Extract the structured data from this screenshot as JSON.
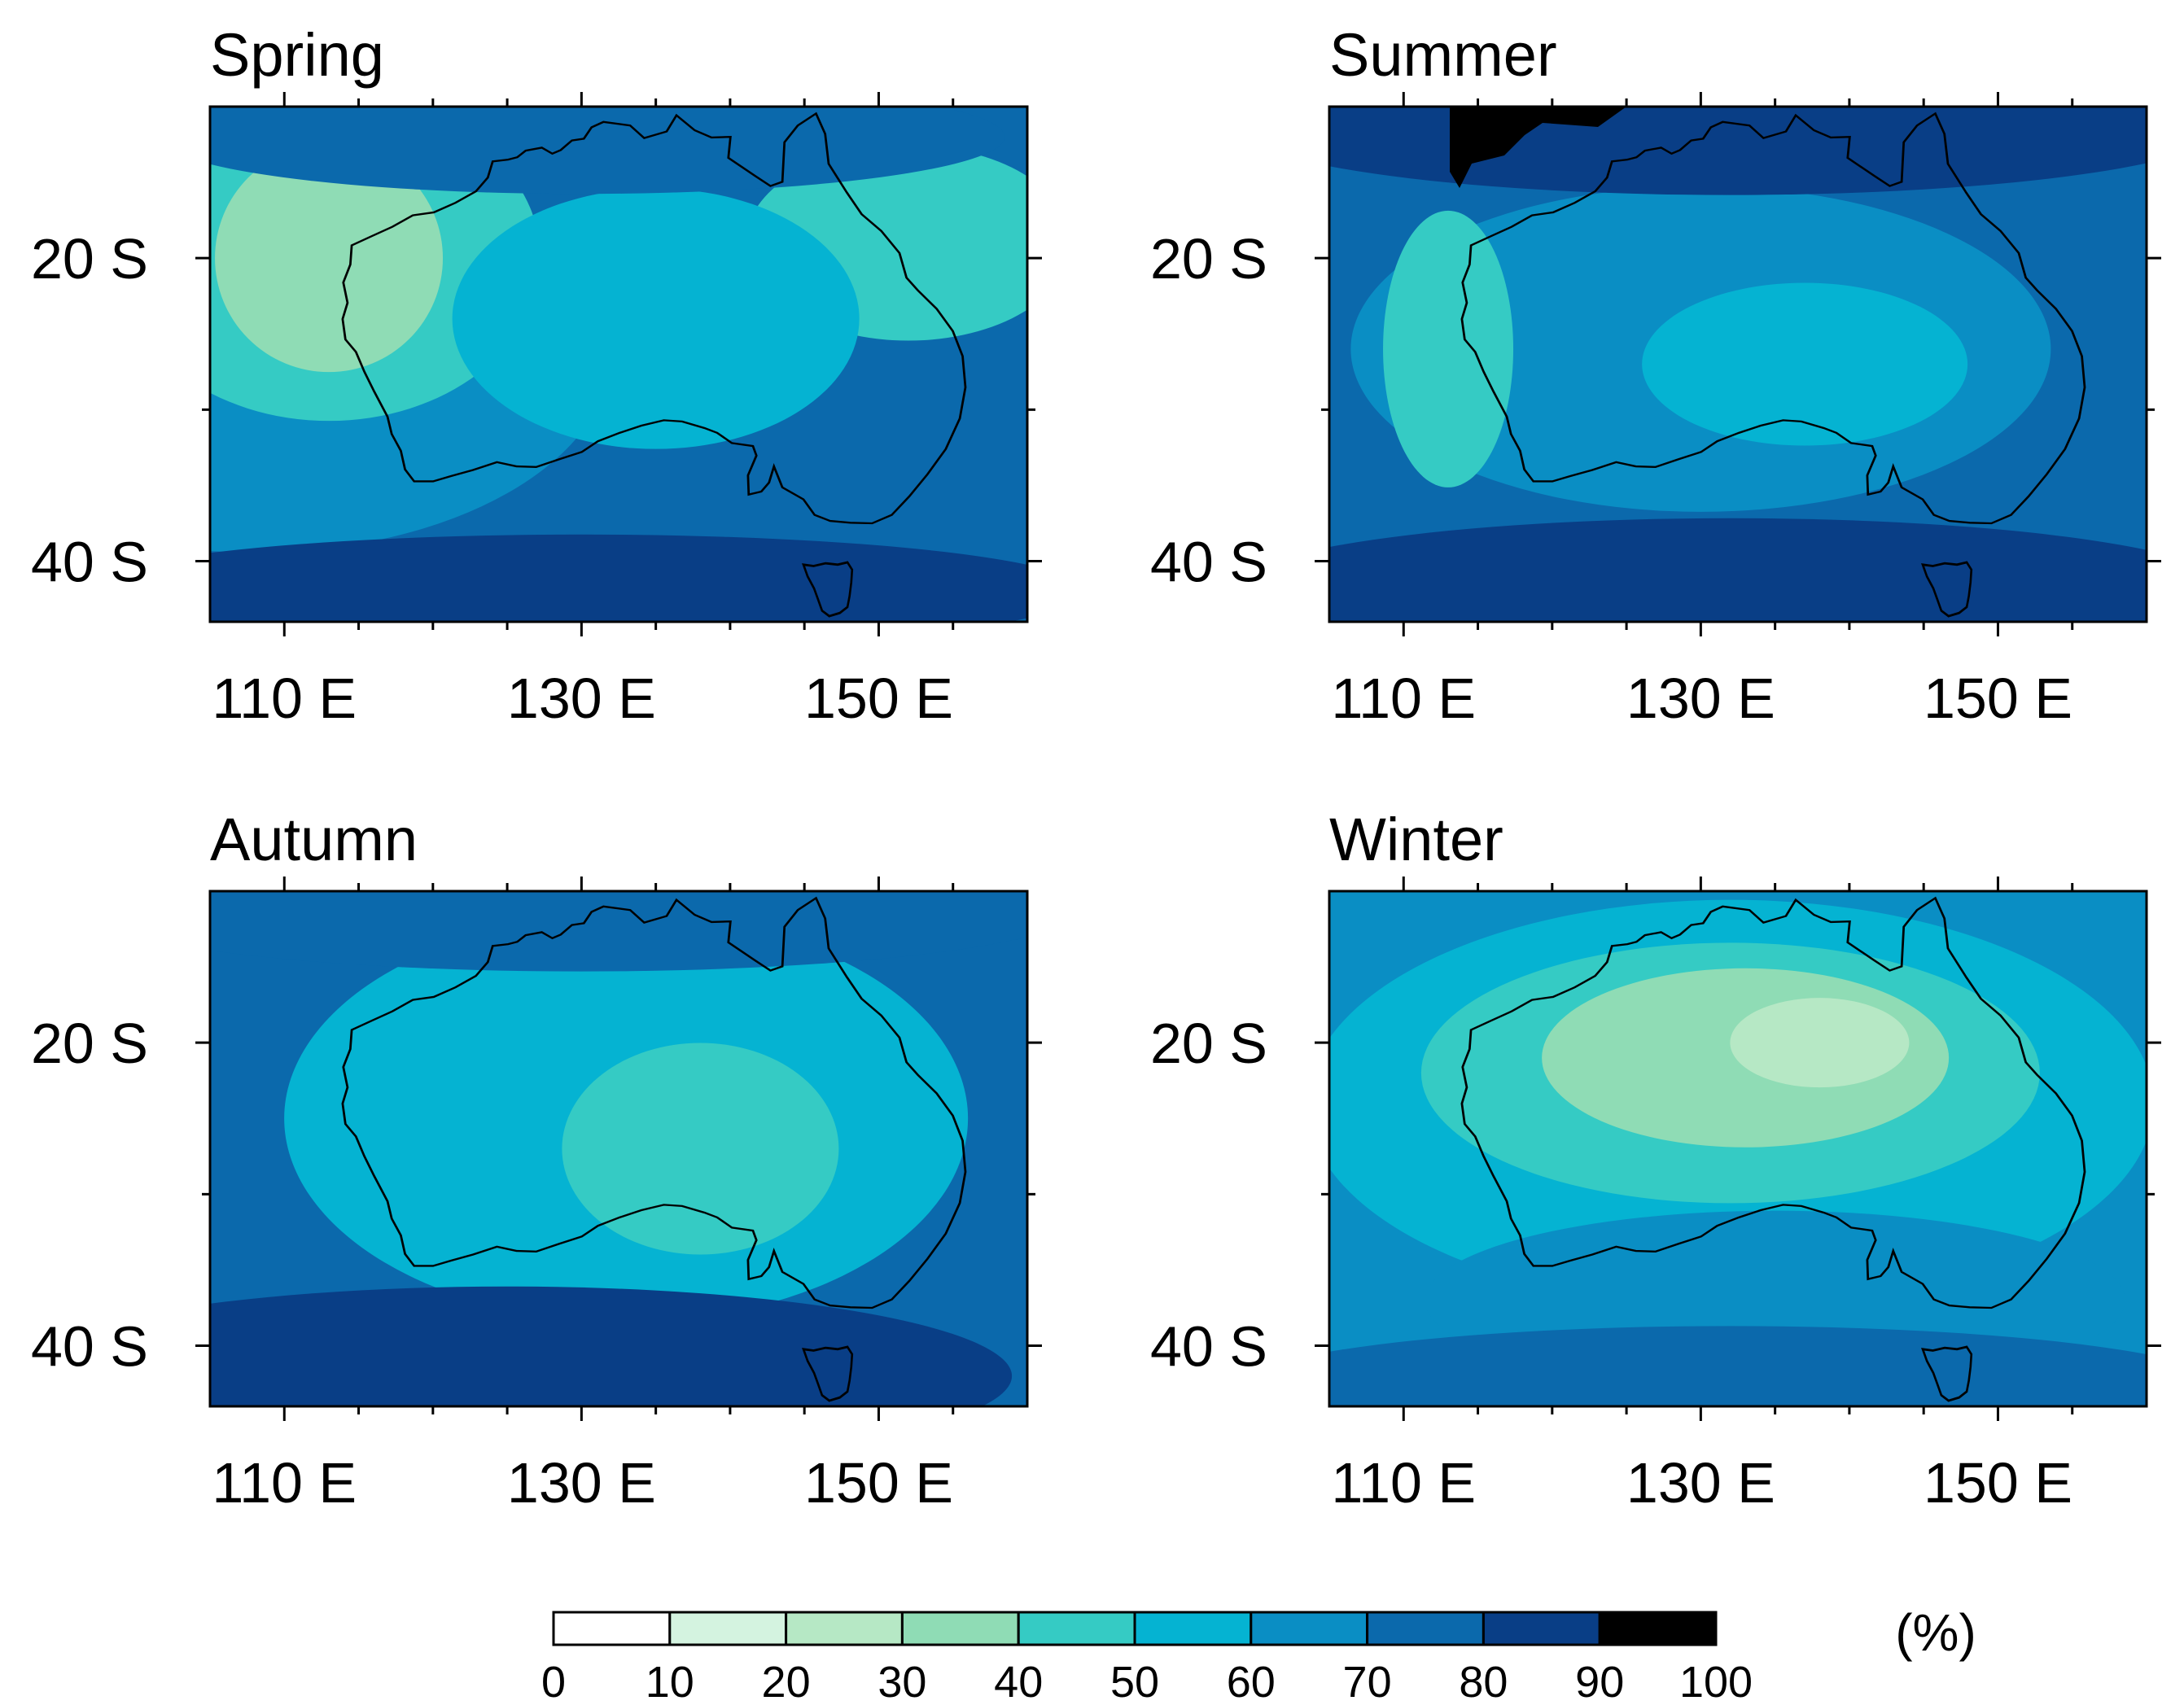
{
  "figure": {
    "units_label": "(%)",
    "colorbar_ticks": [
      "0",
      "10",
      "20",
      "30",
      "40",
      "50",
      "60",
      "70",
      "80",
      "90",
      "100"
    ],
    "colorbar_colors": [
      "#ffffff",
      "#d4f3e0",
      "#b6e8c5",
      "#8fdcb5",
      "#35cbc4",
      "#05b3d2",
      "#0a8ec4",
      "#0b69ac",
      "#093e86",
      "#000000"
    ]
  },
  "chart_data": {
    "type": "heatmap",
    "x_tick_labels": [
      "110 E",
      "130 E",
      "150 E"
    ],
    "y_tick_labels": [
      "20 S",
      "40 S"
    ],
    "x_ticks": [
      110,
      130,
      150
    ],
    "y_ticks": [
      20,
      40
    ],
    "lon_range": [
      105,
      160
    ],
    "lat_range": [
      10,
      44
    ],
    "levels": [
      0,
      10,
      20,
      30,
      40,
      50,
      60,
      70,
      80,
      90,
      100
    ],
    "panels": [
      {
        "title": "Spring",
        "background_level": 70
      },
      {
        "title": "Summer",
        "background_level": 70
      },
      {
        "title": "Autumn",
        "background_level": 70
      },
      {
        "title": "Winter",
        "background_level": 60
      }
    ]
  }
}
